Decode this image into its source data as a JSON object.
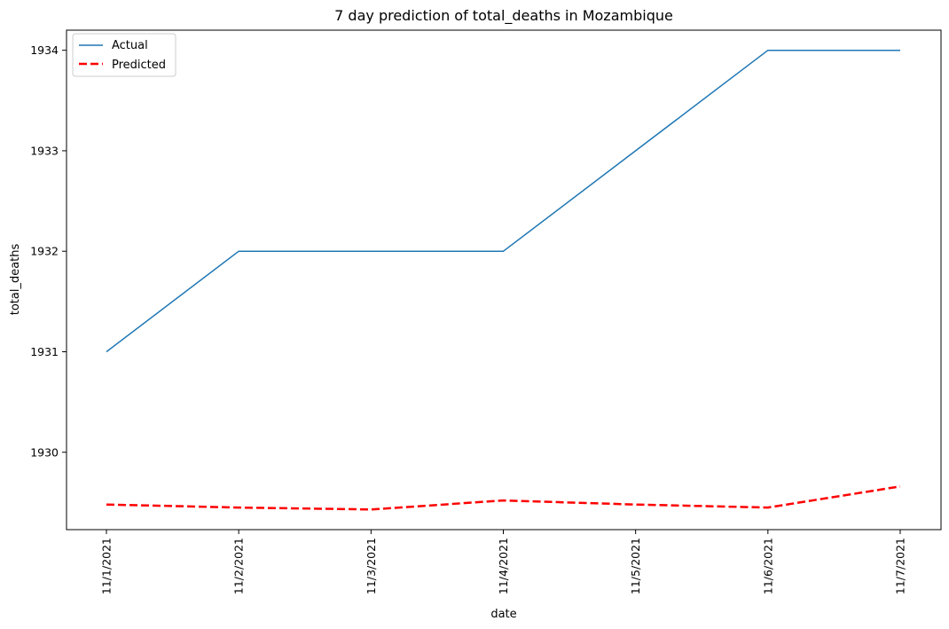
{
  "chart_data": {
    "type": "line",
    "title": "7 day prediction of total_deaths in Mozambique",
    "xlabel": "date",
    "ylabel": "total_deaths",
    "categories": [
      "11/1/2021",
      "11/2/2021",
      "11/3/2021",
      "11/4/2021",
      "11/5/2021",
      "11/6/2021",
      "11/7/2021"
    ],
    "yticks": [
      1930,
      1931,
      1932,
      1933,
      1934
    ],
    "ylim": [
      1929.23,
      1934.2
    ],
    "grid": false,
    "legend_position": "top-left",
    "series": [
      {
        "name": "Actual",
        "color": "#1f77b4",
        "style": "solid",
        "values": [
          1931,
          1932,
          1932,
          1932,
          1933,
          1934,
          1934
        ]
      },
      {
        "name": "Predicted",
        "color": "#ff0000",
        "style": "dashed",
        "values": [
          1929.48,
          1929.45,
          1929.43,
          1929.52,
          1929.48,
          1929.45,
          1929.66
        ]
      }
    ]
  }
}
